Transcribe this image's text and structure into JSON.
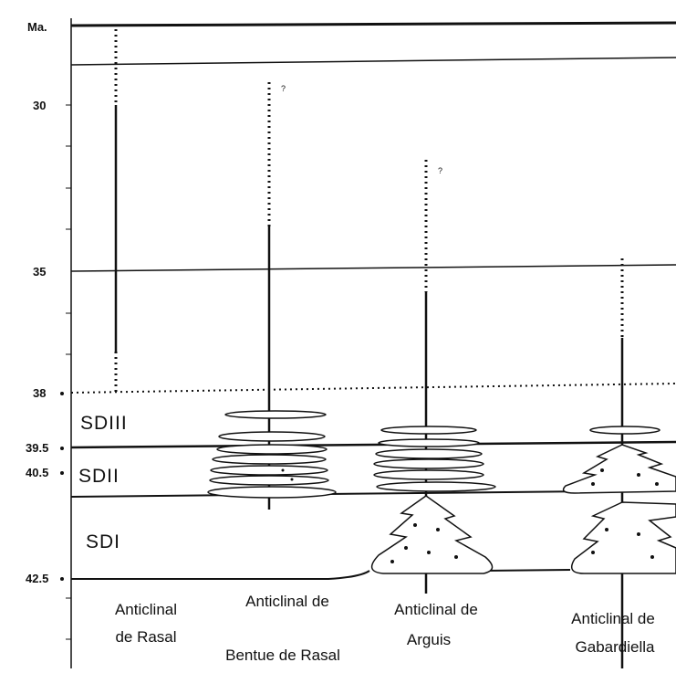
{
  "axis": {
    "title": "Ma.",
    "ticks": [
      "30",
      "35",
      "38",
      "39.5",
      "40.5",
      "42.5"
    ]
  },
  "sequences": [
    "SDIII",
    "SDII",
    "SDI"
  ],
  "columns": [
    {
      "label_lines": [
        "Anticlinal",
        "de Rasal"
      ]
    },
    {
      "label_lines": [
        "Anticlinal de",
        "Bentue de Rasal"
      ],
      "query": "?"
    },
    {
      "label_lines": [
        "Anticlinal de",
        "Arguis"
      ],
      "query": "?"
    },
    {
      "label_lines": [
        "Anticlinal de",
        "Gabardiella"
      ]
    }
  ]
}
